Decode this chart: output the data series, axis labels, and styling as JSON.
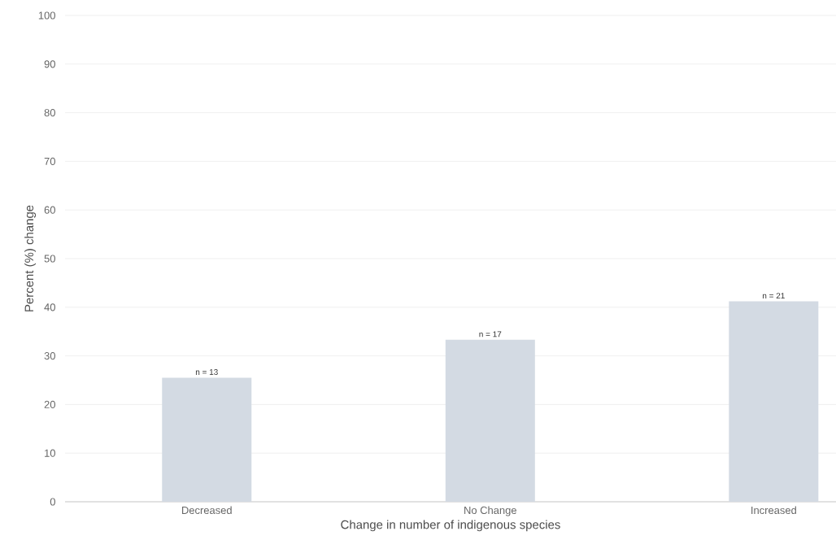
{
  "chart_data": {
    "type": "bar",
    "xlabel": "Change in number of indigenous species",
    "ylabel": "Percent (%) change",
    "categories": [
      "Decreased",
      "No Change",
      "Increased"
    ],
    "values": [
      25.5,
      33.3,
      41.2
    ],
    "annotations": [
      {
        "text": "n = 13",
        "x": "Decreased",
        "y": 25.5
      },
      {
        "text": "n = 17",
        "x": "No Change",
        "y": 33.3
      },
      {
        "text": "n = 21",
        "x": "Increased",
        "y": 41.2
      }
    ],
    "color": "#d3dae3",
    "ylim": [
      0,
      100
    ],
    "yticks": [
      0,
      10,
      20,
      30,
      40,
      50,
      60,
      70,
      80,
      90,
      100
    ],
    "grid": "y"
  }
}
